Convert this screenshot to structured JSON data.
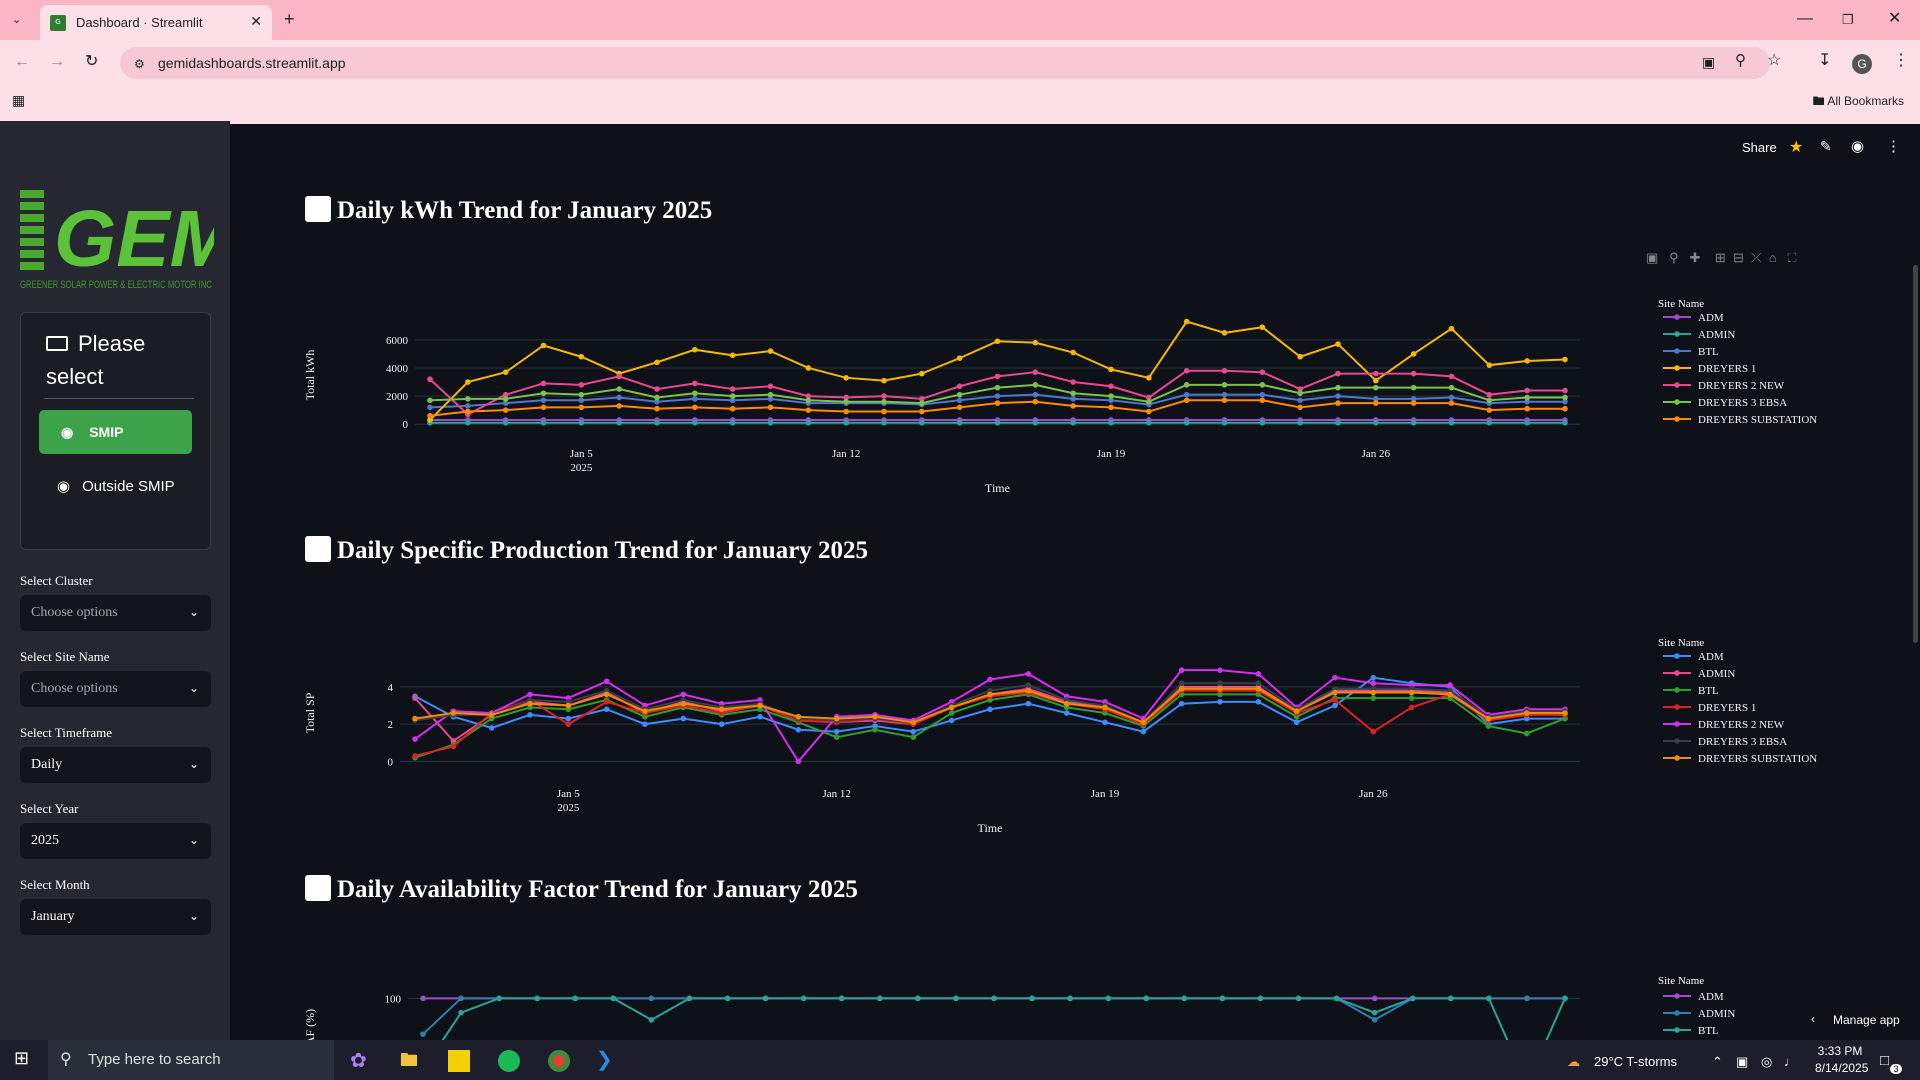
{
  "browser": {
    "tab_title": "Dashboard · Streamlit",
    "url": "gemidashboards.streamlit.app",
    "bookmarks_label": "All Bookmarks",
    "profile_initial": "G"
  },
  "app_header": {
    "share_label": "Share"
  },
  "sidebar": {
    "logo_text": "GEMI",
    "logo_subtext": "GREENER SOLAR POWER & ELECTRIC MOTOR INC",
    "menu_title": "Please select",
    "menu_items": [
      {
        "label": "SMIP",
        "icon": "map-pin-icon",
        "active": true
      },
      {
        "label": "Outside SMIP",
        "icon": "map-pin-icon",
        "active": false
      }
    ],
    "filters": [
      {
        "label": "Select Cluster",
        "value": "Choose options",
        "placeholder": true
      },
      {
        "label": "Select Site Name",
        "value": "Choose options",
        "placeholder": true
      },
      {
        "label": "Select Timeframe",
        "value": "Daily",
        "placeholder": false
      },
      {
        "label": "Select Year",
        "value": "2025",
        "placeholder": false
      },
      {
        "label": "Select Month",
        "value": "January",
        "placeholder": false
      }
    ]
  },
  "sections": [
    {
      "title": "Daily kWh Trend for January 2025"
    },
    {
      "title": "Daily Specific Production Trend for January 2025"
    },
    {
      "title": "Daily Availability Factor Trend for January 2025"
    }
  ],
  "chart_data": [
    {
      "type": "line",
      "title": "Daily kWh Trend for January 2025",
      "xlabel": "Time",
      "ylabel": "Total kWh",
      "legend_title": "Site Name",
      "x_ticks": [
        "Jan 5\n2025",
        "Jan 12",
        "Jan 19",
        "Jan 26"
      ],
      "y_ticks": [
        0,
        2000,
        4000,
        6000
      ],
      "ylim": [
        -200,
        7200
      ],
      "x": [
        1,
        2,
        3,
        4,
        5,
        6,
        7,
        8,
        9,
        10,
        11,
        12,
        13,
        14,
        15,
        16,
        17,
        18,
        19,
        20,
        21,
        22,
        23,
        24,
        25,
        26,
        27,
        28,
        29,
        30,
        31
      ],
      "series": [
        {
          "name": "ADM",
          "color": "#9c4dcc",
          "values": [
            300,
            300,
            300,
            300,
            300,
            300,
            300,
            300,
            300,
            300,
            300,
            300,
            300,
            300,
            300,
            300,
            300,
            300,
            300,
            300,
            300,
            300,
            300,
            300,
            300,
            300,
            300,
            300,
            300,
            300,
            300
          ]
        },
        {
          "name": "ADMIN",
          "color": "#26a69a",
          "values": [
            100,
            100,
            100,
            100,
            100,
            100,
            100,
            100,
            100,
            100,
            100,
            100,
            100,
            100,
            100,
            100,
            100,
            100,
            100,
            100,
            100,
            100,
            100,
            100,
            100,
            100,
            100,
            100,
            100,
            100,
            100
          ]
        },
        {
          "name": "BTL",
          "color": "#4c78c8",
          "values": [
            1200,
            1300,
            1500,
            1700,
            1700,
            1900,
            1600,
            1800,
            1700,
            1800,
            1500,
            1500,
            1500,
            1400,
            1700,
            2000,
            2100,
            1800,
            1700,
            1400,
            2100,
            2100,
            2100,
            1700,
            2000,
            1800,
            1800,
            1900,
            1500,
            1600,
            1600
          ]
        },
        {
          "name": "DREYERS 1",
          "color": "#f5b800",
          "values": [
            300,
            3000,
            3700,
            5600,
            4800,
            3600,
            4400,
            5300,
            4900,
            5200,
            4000,
            3300,
            3100,
            3600,
            4700,
            5900,
            5800,
            5100,
            3900,
            3300,
            7300,
            6500,
            6900,
            4800,
            5700,
            3100,
            5000,
            6800,
            4200,
            4500,
            4600
          ]
        },
        {
          "name": "DREYERS 2 NEW",
          "color": "#e8488f",
          "values": [
            3200,
            700,
            2100,
            2900,
            2800,
            3400,
            2500,
            2900,
            2500,
            2700,
            2000,
            1900,
            2000,
            1800,
            2700,
            3400,
            3700,
            3000,
            2700,
            1900,
            3800,
            3800,
            3700,
            2500,
            3600,
            3600,
            3600,
            3400,
            2100,
            2400,
            2400
          ]
        },
        {
          "name": "DREYERS 3 EBSA",
          "color": "#7cc24a",
          "values": [
            1700,
            1800,
            1800,
            2200,
            2100,
            2500,
            1900,
            2200,
            2000,
            2100,
            1700,
            1600,
            1600,
            1500,
            2100,
            2600,
            2800,
            2200,
            2000,
            1600,
            2800,
            2800,
            2800,
            2200,
            2600,
            2600,
            2600,
            2600,
            1700,
            1900,
            1900
          ]
        },
        {
          "name": "DREYERS SUBSTATION",
          "color": "#ff8a00",
          "values": [
            600,
            900,
            1000,
            1200,
            1200,
            1300,
            1100,
            1200,
            1100,
            1200,
            1000,
            900,
            900,
            900,
            1200,
            1500,
            1600,
            1300,
            1200,
            900,
            1700,
            1700,
            1700,
            1200,
            1500,
            1500,
            1500,
            1500,
            1000,
            1100,
            1100
          ]
        }
      ]
    },
    {
      "type": "line",
      "title": "Daily Specific Production Trend for January 2025",
      "xlabel": "Time",
      "ylabel": "Total SP",
      "legend_title": "Site Name",
      "x_ticks": [
        "Jan 5\n2025",
        "Jan 12",
        "Jan 19",
        "Jan 26"
      ],
      "y_ticks": [
        0,
        2,
        4
      ],
      "ylim": [
        -0.3,
        5.5
      ],
      "x": [
        1,
        2,
        3,
        4,
        5,
        6,
        7,
        8,
        9,
        10,
        11,
        12,
        13,
        14,
        15,
        16,
        17,
        18,
        19,
        20,
        21,
        22,
        23,
        24,
        25,
        26,
        27,
        28,
        29,
        30,
        31
      ],
      "series": [
        {
          "name": "ADM",
          "color": "#3d8bff",
          "values": [
            3.5,
            2.4,
            1.8,
            2.5,
            2.3,
            2.8,
            2.0,
            2.3,
            2.0,
            2.4,
            1.7,
            1.6,
            1.9,
            1.6,
            2.2,
            2.8,
            3.1,
            2.6,
            2.1,
            1.6,
            3.1,
            3.2,
            3.2,
            2.1,
            3.0,
            4.5,
            4.2,
            4.0,
            2.0,
            2.3,
            2.3
          ]
        },
        {
          "name": "ADMIN",
          "color": "#e8488f",
          "values": [
            3.4,
            1.1,
            2.5,
            3.2,
            3.0,
            3.7,
            2.6,
            3.2,
            2.7,
            3.0,
            2.2,
            2.1,
            2.2,
            2.0,
            2.9,
            3.6,
            3.9,
            3.2,
            2.9,
            2.0,
            4.0,
            4.0,
            4.0,
            2.7,
            3.8,
            3.8,
            3.8,
            3.7,
            2.3,
            2.6,
            2.6
          ]
        },
        {
          "name": "BTL",
          "color": "#2e9e2e",
          "values": [
            0.2,
            0.9,
            2.3,
            2.9,
            2.8,
            3.3,
            2.4,
            2.9,
            2.5,
            2.8,
            2.1,
            1.3,
            1.7,
            1.3,
            2.6,
            3.3,
            3.6,
            2.9,
            2.6,
            1.9,
            3.6,
            3.6,
            3.6,
            2.4,
            3.4,
            3.4,
            3.4,
            3.4,
            1.9,
            1.5,
            2.3
          ]
        },
        {
          "name": "DREYERS 1",
          "color": "#e02020",
          "values": [
            0.3,
            0.8,
            2.6,
            3.3,
            2.0,
            3.2,
            2.6,
            3.0,
            2.6,
            3.0,
            2.2,
            2.1,
            2.3,
            2.0,
            2.9,
            3.5,
            3.7,
            3.1,
            2.8,
            2.0,
            3.8,
            3.8,
            3.8,
            2.6,
            3.3,
            1.6,
            2.9,
            3.6,
            2.2,
            2.5,
            2.5
          ]
        },
        {
          "name": "DREYERS 2 NEW",
          "color": "#d52ef0",
          "values": [
            1.2,
            2.7,
            2.6,
            3.6,
            3.4,
            4.3,
            3.0,
            3.6,
            3.1,
            3.3,
            0.0,
            2.4,
            2.5,
            2.2,
            3.2,
            4.4,
            4.7,
            3.5,
            3.2,
            2.3,
            4.9,
            4.9,
            4.7,
            2.9,
            4.5,
            4.2,
            4.1,
            4.1,
            2.5,
            2.8,
            2.8
          ]
        },
        {
          "name": "DREYERS 3 EBSA",
          "color": "#3a3d4a",
          "values": [
            2.2,
            2.5,
            2.5,
            3.3,
            3.2,
            3.8,
            2.8,
            3.3,
            2.9,
            3.1,
            2.3,
            2.2,
            2.3,
            2.1,
            3.0,
            3.8,
            4.1,
            3.3,
            3.0,
            2.1,
            4.2,
            4.2,
            4.2,
            2.8,
            3.9,
            3.9,
            3.9,
            3.8,
            2.4,
            2.7,
            2.7
          ]
        },
        {
          "name": "DREYERS SUBSTATION",
          "color": "#f08c00",
          "values": [
            2.3,
            2.6,
            2.5,
            3.1,
            3.0,
            3.6,
            2.7,
            3.1,
            2.8,
            3.0,
            2.4,
            2.3,
            2.4,
            2.1,
            2.9,
            3.6,
            3.8,
            3.1,
            2.9,
            2.1,
            3.9,
            3.9,
            3.9,
            2.7,
            3.7,
            3.7,
            3.7,
            3.6,
            2.3,
            2.6,
            2.6
          ]
        }
      ]
    },
    {
      "type": "line",
      "title": "Daily Availability Factor Trend for January 2025",
      "xlabel": "",
      "ylabel": "AF (%)",
      "legend_title": "Site Name",
      "y_ticks": [
        100
      ],
      "x": [
        1,
        2,
        3,
        4,
        5,
        6,
        7,
        8,
        9,
        10,
        11,
        12,
        13,
        14,
        15,
        16,
        17,
        18,
        19,
        20,
        21,
        22,
        23,
        24,
        25,
        26,
        27,
        28,
        29,
        30,
        31
      ],
      "series": [
        {
          "name": "ADM",
          "color": "#9c4dcc",
          "values": [
            100,
            100,
            100,
            100,
            100,
            100,
            100,
            100,
            100,
            100,
            100,
            100,
            100,
            100,
            100,
            100,
            100,
            100,
            100,
            100,
            100,
            100,
            100,
            100,
            100,
            100,
            100,
            100,
            100,
            100,
            100
          ]
        },
        {
          "name": "ADMIN",
          "color": "#2e7fb0",
          "values": [
            95,
            100,
            100,
            100,
            100,
            100,
            100,
            100,
            100,
            100,
            100,
            100,
            100,
            100,
            100,
            100,
            100,
            100,
            100,
            100,
            100,
            100,
            100,
            100,
            100,
            97,
            100,
            100,
            100,
            100,
            100
          ]
        },
        {
          "name": "BTL",
          "color": "#26a69a",
          "values": [
            90,
            98,
            100,
            100,
            100,
            100,
            97,
            100,
            100,
            100,
            100,
            100,
            100,
            100,
            100,
            100,
            100,
            100,
            100,
            100,
            100,
            100,
            100,
            100,
            100,
            98,
            100,
            100,
            100,
            88,
            100
          ]
        }
      ]
    }
  ],
  "overlay": {
    "manage_app": "Manage app"
  },
  "taskbar": {
    "search_placeholder": "Type here to search",
    "weather": "29°C  T-storms",
    "time": "3:33 PM",
    "date": "8/14/2025",
    "notifications": "3"
  }
}
